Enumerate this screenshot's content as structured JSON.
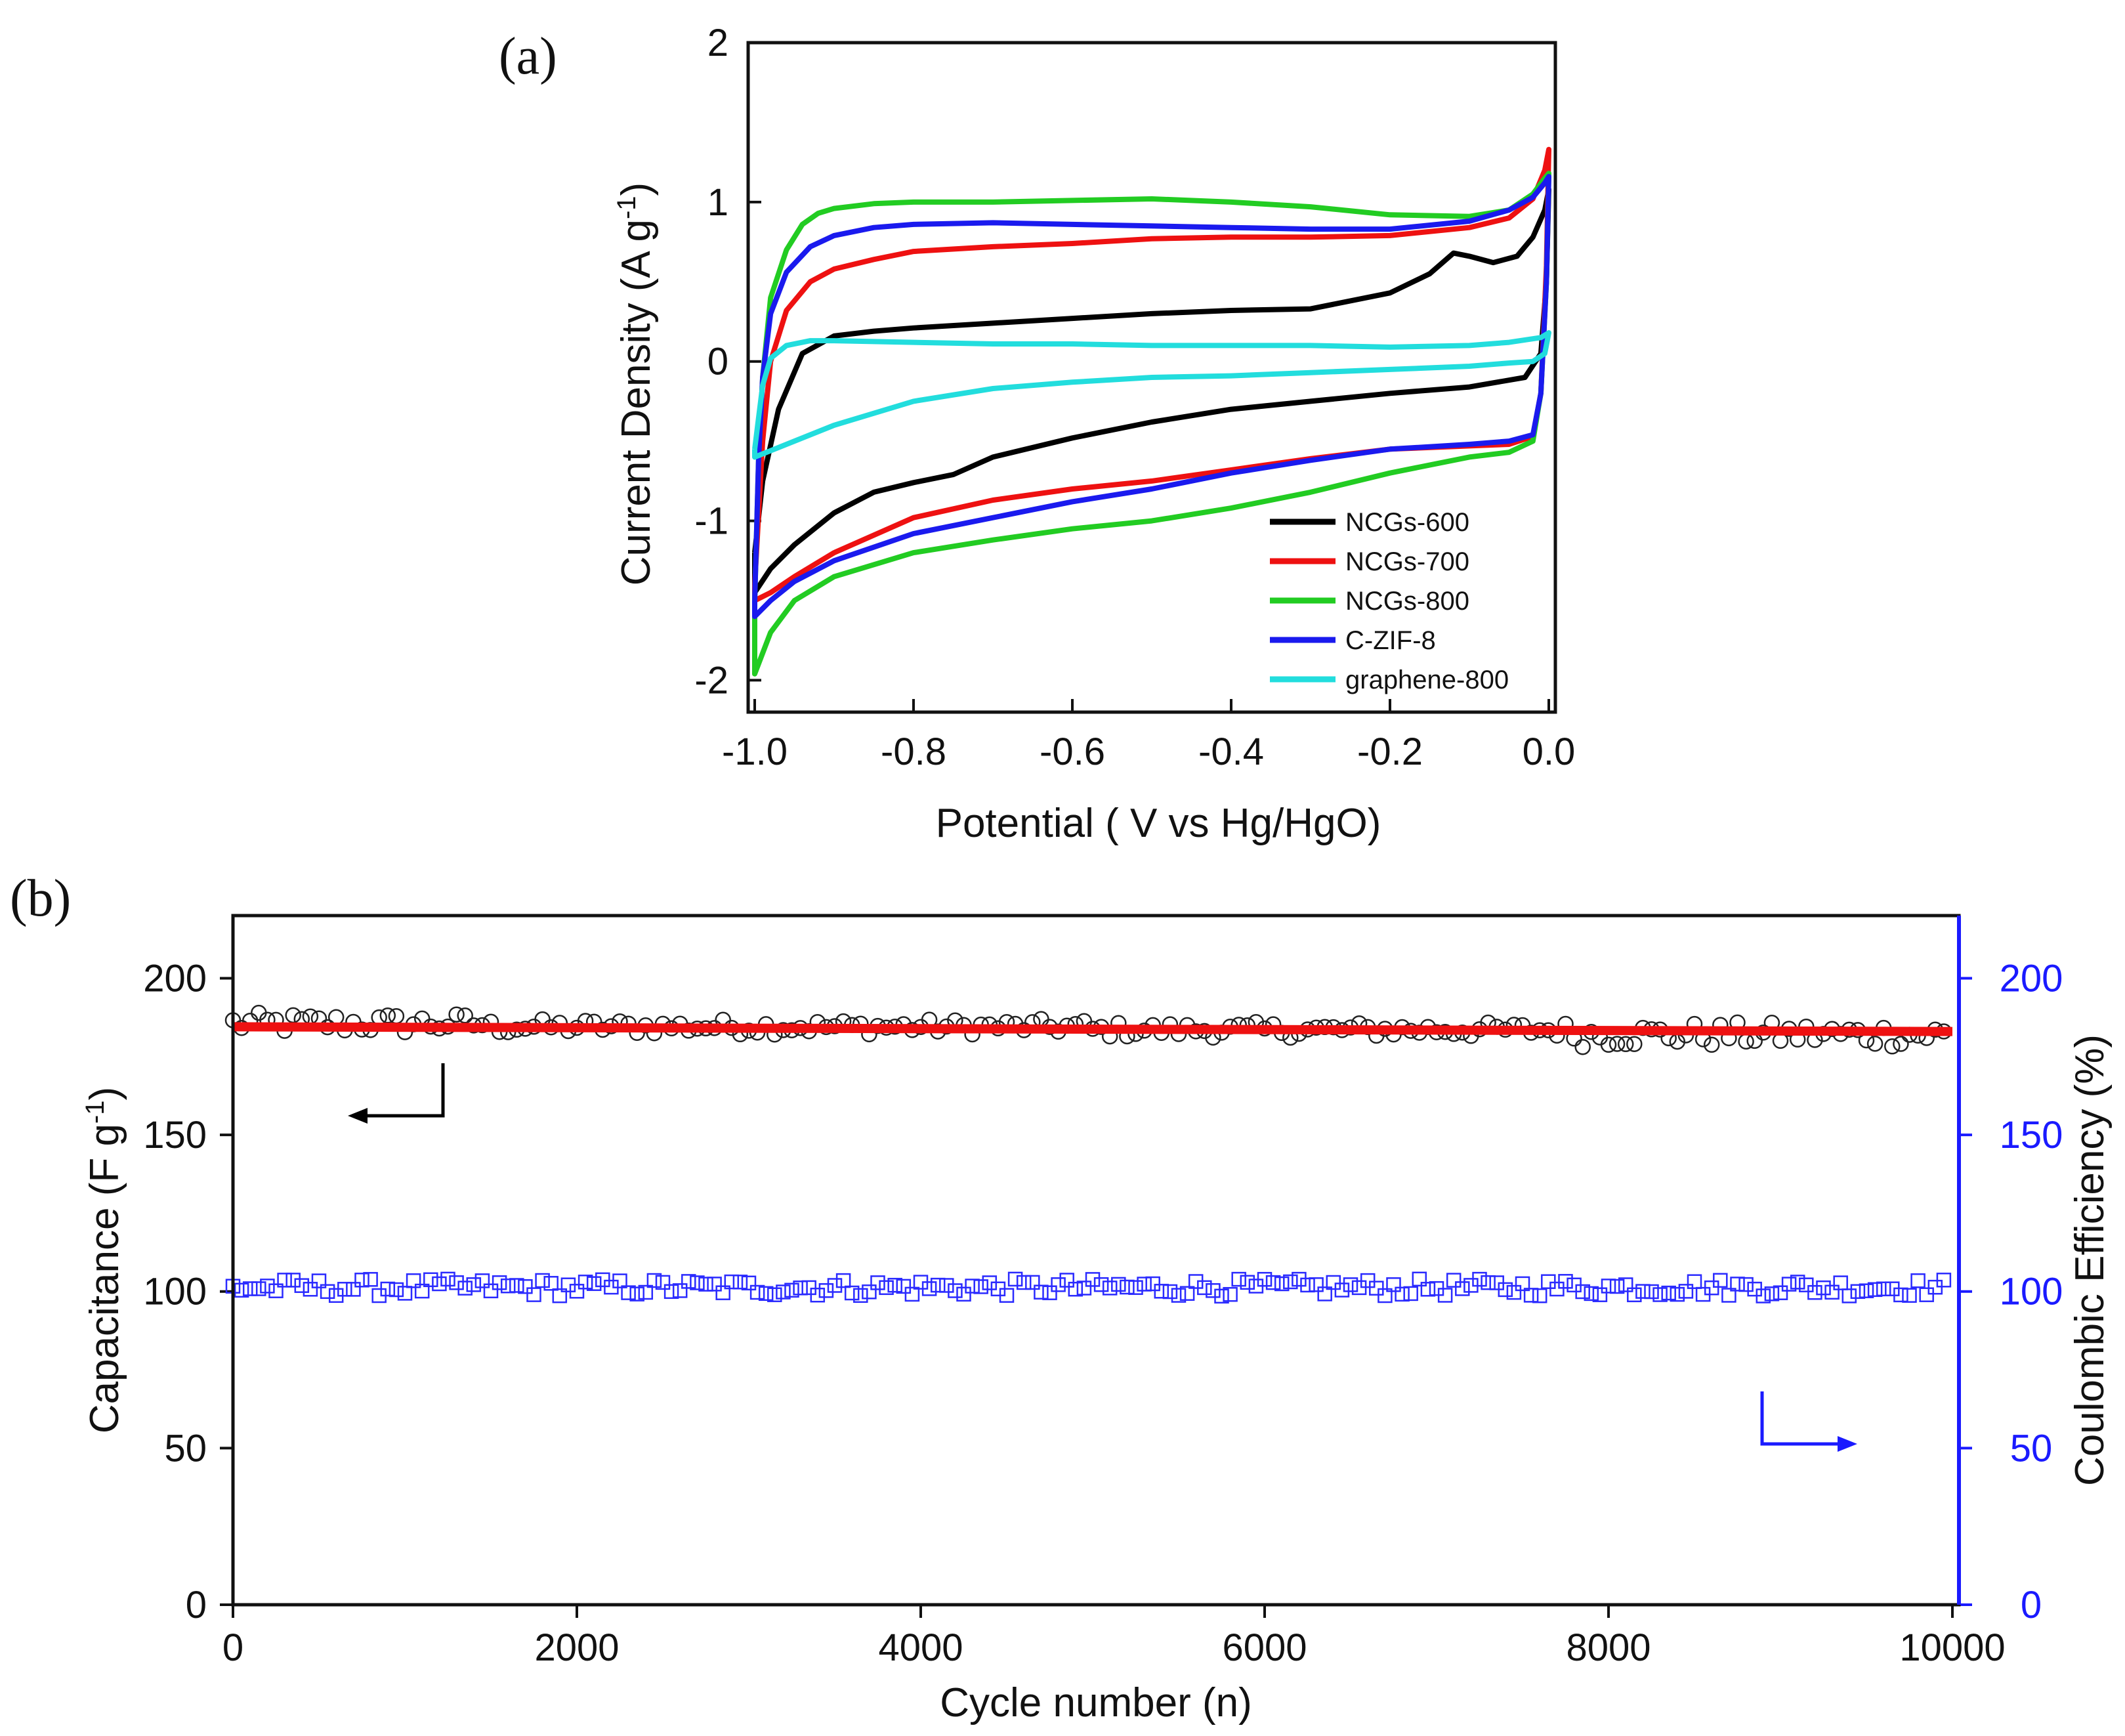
{
  "chart_data": [
    {
      "panel": "(a)",
      "type": "line",
      "title": "",
      "xlabel": "Potential ( V vs Hg/HgO)",
      "ylabel": "Current Density (A g",
      "ylabel_sup": "-1",
      "ylabel_close": ")",
      "xlim": [
        -1.0,
        0.0
      ],
      "ylim": [
        -2.2,
        2.0
      ],
      "xticks": [
        -1.0,
        -0.8,
        -0.6,
        -0.4,
        -0.2,
        0.0
      ],
      "xtick_labels": [
        "-1.0",
        "-0.8",
        "-0.6",
        "-0.4",
        "-0.2",
        "0.0"
      ],
      "yticks": [
        -2,
        -1,
        0,
        1,
        2
      ],
      "ytick_labels": [
        "-2",
        "-1",
        "0",
        "1",
        "2"
      ],
      "legend_position": "bottom-right",
      "series": [
        {
          "name": "NCGs-600",
          "color": "#000000",
          "upper": [
            [
              -1.0,
              -1.2
            ],
            [
              -0.99,
              -0.75
            ],
            [
              -0.97,
              -0.3
            ],
            [
              -0.94,
              0.05
            ],
            [
              -0.9,
              0.16
            ],
            [
              -0.85,
              0.19
            ],
            [
              -0.8,
              0.21
            ],
            [
              -0.7,
              0.24
            ],
            [
              -0.6,
              0.27
            ],
            [
              -0.5,
              0.3
            ],
            [
              -0.4,
              0.32
            ],
            [
              -0.3,
              0.33
            ],
            [
              -0.2,
              0.43
            ],
            [
              -0.15,
              0.55
            ],
            [
              -0.12,
              0.68
            ],
            [
              -0.1,
              0.66
            ],
            [
              -0.07,
              0.62
            ],
            [
              -0.04,
              0.66
            ],
            [
              -0.02,
              0.78
            ],
            [
              -0.005,
              0.95
            ],
            [
              0.0,
              1.08
            ]
          ],
          "lower": [
            [
              0.0,
              1.08
            ],
            [
              -0.003,
              0.5
            ],
            [
              -0.01,
              0.05
            ],
            [
              -0.03,
              -0.1
            ],
            [
              -0.1,
              -0.16
            ],
            [
              -0.2,
              -0.2
            ],
            [
              -0.3,
              -0.25
            ],
            [
              -0.4,
              -0.3
            ],
            [
              -0.5,
              -0.38
            ],
            [
              -0.6,
              -0.48
            ],
            [
              -0.7,
              -0.6
            ],
            [
              -0.75,
              -0.71
            ],
            [
              -0.8,
              -0.76
            ],
            [
              -0.85,
              -0.82
            ],
            [
              -0.9,
              -0.95
            ],
            [
              -0.95,
              -1.15
            ],
            [
              -0.98,
              -1.3
            ],
            [
              -1.0,
              -1.45
            ]
          ]
        },
        {
          "name": "NCGs-700",
          "color": "#ee1111",
          "upper": [
            [
              -1.0,
              -1.4
            ],
            [
              -0.99,
              -0.5
            ],
            [
              -0.98,
              0.0
            ],
            [
              -0.96,
              0.32
            ],
            [
              -0.93,
              0.5
            ],
            [
              -0.9,
              0.58
            ],
            [
              -0.85,
              0.64
            ],
            [
              -0.8,
              0.69
            ],
            [
              -0.7,
              0.72
            ],
            [
              -0.6,
              0.74
            ],
            [
              -0.5,
              0.77
            ],
            [
              -0.4,
              0.78
            ],
            [
              -0.3,
              0.78
            ],
            [
              -0.2,
              0.79
            ],
            [
              -0.1,
              0.84
            ],
            [
              -0.05,
              0.9
            ],
            [
              -0.02,
              1.02
            ],
            [
              -0.005,
              1.2
            ],
            [
              0.0,
              1.33
            ]
          ],
          "lower": [
            [
              0.0,
              1.33
            ],
            [
              -0.003,
              0.6
            ],
            [
              -0.01,
              -0.2
            ],
            [
              -0.02,
              -0.47
            ],
            [
              -0.05,
              -0.52
            ],
            [
              -0.1,
              -0.53
            ],
            [
              -0.2,
              -0.55
            ],
            [
              -0.3,
              -0.61
            ],
            [
              -0.4,
              -0.68
            ],
            [
              -0.5,
              -0.75
            ],
            [
              -0.6,
              -0.8
            ],
            [
              -0.7,
              -0.87
            ],
            [
              -0.8,
              -0.98
            ],
            [
              -0.9,
              -1.2
            ],
            [
              -0.95,
              -1.35
            ],
            [
              -0.98,
              -1.45
            ],
            [
              -1.0,
              -1.5
            ]
          ]
        },
        {
          "name": "NCGs-800",
          "color": "#22cc22",
          "upper": [
            [
              -1.0,
              -1.5
            ],
            [
              -0.995,
              -0.6
            ],
            [
              -0.99,
              -0.1
            ],
            [
              -0.98,
              0.4
            ],
            [
              -0.96,
              0.7
            ],
            [
              -0.94,
              0.86
            ],
            [
              -0.92,
              0.93
            ],
            [
              -0.9,
              0.96
            ],
            [
              -0.85,
              0.99
            ],
            [
              -0.8,
              1.0
            ],
            [
              -0.7,
              1.0
            ],
            [
              -0.6,
              1.01
            ],
            [
              -0.5,
              1.02
            ],
            [
              -0.4,
              1.0
            ],
            [
              -0.3,
              0.97
            ],
            [
              -0.2,
              0.92
            ],
            [
              -0.1,
              0.91
            ],
            [
              -0.05,
              0.95
            ],
            [
              -0.02,
              1.05
            ],
            [
              -0.005,
              1.15
            ],
            [
              0.0,
              1.18
            ]
          ],
          "lower": [
            [
              0.0,
              1.18
            ],
            [
              -0.003,
              0.5
            ],
            [
              -0.01,
              -0.2
            ],
            [
              -0.02,
              -0.5
            ],
            [
              -0.05,
              -0.57
            ],
            [
              -0.1,
              -0.6
            ],
            [
              -0.2,
              -0.7
            ],
            [
              -0.3,
              -0.82
            ],
            [
              -0.4,
              -0.92
            ],
            [
              -0.5,
              -1.0
            ],
            [
              -0.6,
              -1.05
            ],
            [
              -0.7,
              -1.12
            ],
            [
              -0.8,
              -1.2
            ],
            [
              -0.9,
              -1.35
            ],
            [
              -0.95,
              -1.5
            ],
            [
              -0.98,
              -1.7
            ],
            [
              -1.0,
              -1.96
            ]
          ]
        },
        {
          "name": "C-ZIF-8",
          "color": "#1a1aee",
          "upper": [
            [
              -1.0,
              -1.5
            ],
            [
              -0.995,
              -0.6
            ],
            [
              -0.99,
              -0.1
            ],
            [
              -0.98,
              0.3
            ],
            [
              -0.96,
              0.56
            ],
            [
              -0.93,
              0.72
            ],
            [
              -0.9,
              0.79
            ],
            [
              -0.85,
              0.84
            ],
            [
              -0.8,
              0.86
            ],
            [
              -0.7,
              0.87
            ],
            [
              -0.6,
              0.86
            ],
            [
              -0.5,
              0.85
            ],
            [
              -0.4,
              0.84
            ],
            [
              -0.3,
              0.83
            ],
            [
              -0.2,
              0.83
            ],
            [
              -0.1,
              0.88
            ],
            [
              -0.05,
              0.95
            ],
            [
              -0.02,
              1.03
            ],
            [
              -0.005,
              1.12
            ],
            [
              0.0,
              1.16
            ]
          ],
          "lower": [
            [
              0.0,
              1.16
            ],
            [
              -0.003,
              0.5
            ],
            [
              -0.01,
              -0.2
            ],
            [
              -0.02,
              -0.46
            ],
            [
              -0.05,
              -0.5
            ],
            [
              -0.1,
              -0.52
            ],
            [
              -0.2,
              -0.55
            ],
            [
              -0.3,
              -0.62
            ],
            [
              -0.4,
              -0.7
            ],
            [
              -0.5,
              -0.8
            ],
            [
              -0.6,
              -0.88
            ],
            [
              -0.7,
              -0.98
            ],
            [
              -0.8,
              -1.08
            ],
            [
              -0.9,
              -1.25
            ],
            [
              -0.95,
              -1.38
            ],
            [
              -0.98,
              -1.5
            ],
            [
              -1.0,
              -1.6
            ]
          ]
        },
        {
          "name": "graphene-800",
          "color": "#22dddd",
          "upper": [
            [
              -1.0,
              -0.55
            ],
            [
              -0.995,
              -0.35
            ],
            [
              -0.99,
              -0.15
            ],
            [
              -0.98,
              0.02
            ],
            [
              -0.96,
              0.1
            ],
            [
              -0.93,
              0.13
            ],
            [
              -0.9,
              0.13
            ],
            [
              -0.8,
              0.12
            ],
            [
              -0.7,
              0.11
            ],
            [
              -0.6,
              0.11
            ],
            [
              -0.5,
              0.1
            ],
            [
              -0.4,
              0.1
            ],
            [
              -0.3,
              0.1
            ],
            [
              -0.2,
              0.09
            ],
            [
              -0.1,
              0.1
            ],
            [
              -0.05,
              0.12
            ],
            [
              -0.01,
              0.15
            ],
            [
              0.0,
              0.18
            ]
          ],
          "lower": [
            [
              0.0,
              0.18
            ],
            [
              -0.005,
              0.05
            ],
            [
              -0.02,
              0.0
            ],
            [
              -0.05,
              -0.01
            ],
            [
              -0.1,
              -0.03
            ],
            [
              -0.2,
              -0.05
            ],
            [
              -0.3,
              -0.07
            ],
            [
              -0.4,
              -0.09
            ],
            [
              -0.5,
              -0.1
            ],
            [
              -0.6,
              -0.13
            ],
            [
              -0.7,
              -0.17
            ],
            [
              -0.8,
              -0.25
            ],
            [
              -0.9,
              -0.4
            ],
            [
              -0.95,
              -0.5
            ],
            [
              -0.98,
              -0.56
            ],
            [
              -1.0,
              -0.6
            ]
          ]
        }
      ]
    },
    {
      "panel": "(b)",
      "type": "scatter",
      "title": "",
      "xlabel": "Cycle number (n)",
      "ylabel_left": "Capacitance (F g",
      "ylabel_left_sup": "-1",
      "ylabel_left_close": ")",
      "ylabel_right": "Coulombic Efficiency (%)",
      "xlim": [
        0,
        10000
      ],
      "ylim_left": [
        0,
        220
      ],
      "ylim_right": [
        0,
        220
      ],
      "xticks": [
        0,
        2000,
        4000,
        6000,
        8000,
        10000
      ],
      "xtick_labels": [
        "0",
        "2000",
        "4000",
        "6000",
        "8000",
        "10000"
      ],
      "yticks_left": [
        0,
        50,
        100,
        150,
        200
      ],
      "ytick_labels_left": [
        "0",
        "50",
        "100",
        "150",
        "200"
      ],
      "yticks_right": [
        0,
        50,
        100,
        150,
        200
      ],
      "ytick_labels_right": [
        "0",
        "50",
        "100",
        "150",
        "200"
      ],
      "colors": {
        "left_axis": "#000000",
        "right_axis": "#1a1aff",
        "capacitance_fit": "#ee1111",
        "capacitance_markers": "#222222",
        "efficiency_markers": "#2a2aff"
      },
      "series": [
        {
          "name": "Capacitance",
          "axis": "left",
          "marker": "circle-open",
          "x_start": 0,
          "x_end": 9950,
          "x_step": 50,
          "y_bands": [
            [
              0,
              1500,
              182,
              189
            ],
            [
              1500,
              5000,
              182,
              187
            ],
            [
              5000,
              7800,
              181,
              186
            ],
            [
              7800,
              10000,
              178,
              186
            ]
          ]
        },
        {
          "name": "Capacitance fit",
          "axis": "left",
          "marker": "line",
          "x": [
            0,
            10000
          ],
          "y": [
            184.5,
            183.0
          ]
        },
        {
          "name": "Coulombic Efficiency",
          "axis": "right",
          "marker": "square-open",
          "x_start": 0,
          "x_end": 9950,
          "x_step": 50,
          "y_range": [
            98.5,
            104.0
          ]
        }
      ],
      "annotations": [
        {
          "type": "arrow",
          "direction": "left",
          "meaning": "left axis",
          "color": "#000000"
        },
        {
          "type": "arrow",
          "direction": "right",
          "meaning": "right axis",
          "color": "#1a1aff"
        }
      ]
    }
  ]
}
